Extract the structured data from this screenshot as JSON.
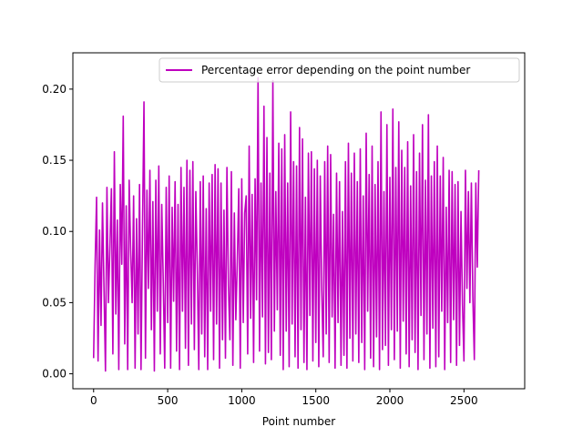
{
  "chart_data": {
    "type": "line",
    "title": "",
    "xlabel": "Point number",
    "ylabel": "",
    "xlim": [
      -140,
      2910
    ],
    "ylim": [
      -0.0105,
      0.2255
    ],
    "xticks": [
      0,
      500,
      1000,
      1500,
      2000,
      2500
    ],
    "yticks": [
      0.0,
      0.05,
      0.1,
      0.15,
      0.2
    ],
    "xtick_labels": [
      "0",
      "500",
      "1000",
      "1500",
      "2000",
      "2500"
    ],
    "ytick_labels": [
      "0.00",
      "0.05",
      "0.10",
      "0.15",
      "0.20"
    ],
    "grid": false,
    "legend_position": "upper right",
    "series": [
      {
        "name": "Percentage error depending on the point number",
        "color": "#bf00bf",
        "x_start": 0,
        "x_step": 10,
        "values": [
          0.011,
          0.076,
          0.124,
          0.009,
          0.101,
          0.034,
          0.12,
          0.061,
          0.002,
          0.131,
          0.05,
          0.089,
          0.13,
          0.014,
          0.156,
          0.042,
          0.108,
          0.003,
          0.133,
          0.077,
          0.181,
          0.021,
          0.118,
          0.003,
          0.136,
          0.087,
          0.05,
          0.125,
          0.004,
          0.109,
          0.028,
          0.133,
          0.003,
          0.101,
          0.191,
          0.011,
          0.129,
          0.06,
          0.143,
          0.031,
          0.121,
          0.002,
          0.136,
          0.044,
          0.146,
          0.014,
          0.119,
          0.066,
          0.004,
          0.131,
          0.036,
          0.139,
          0.004,
          0.117,
          0.051,
          0.135,
          0.016,
          0.119,
          0.003,
          0.145,
          0.044,
          0.131,
          0.018,
          0.15,
          0.006,
          0.143,
          0.035,
          0.149,
          0.017,
          0.128,
          0.074,
          0.003,
          0.135,
          0.028,
          0.139,
          0.012,
          0.116,
          0.003,
          0.134,
          0.044,
          0.14,
          0.01,
          0.147,
          0.035,
          0.144,
          0.004,
          0.134,
          0.024,
          0.115,
          0.011,
          0.145,
          0.062,
          0.024,
          0.142,
          0.006,
          0.113,
          0.038,
          0.079,
          0.13,
          0.004,
          0.137,
          0.036,
          0.113,
          0.125,
          0.014,
          0.16,
          0.039,
          0.126,
          0.008,
          0.137,
          0.052,
          0.208,
          0.016,
          0.134,
          0.04,
          0.188,
          0.007,
          0.166,
          0.015,
          0.141,
          0.01,
          0.206,
          0.03,
          0.128,
          0.045,
          0.162,
          0.013,
          0.158,
          0.003,
          0.168,
          0.03,
          0.134,
          0.005,
          0.184,
          0.035,
          0.149,
          0.012,
          0.146,
          0.004,
          0.173,
          0.031,
          0.165,
          0.008,
          0.124,
          0.003,
          0.155,
          0.041,
          0.156,
          0.009,
          0.144,
          0.022,
          0.15,
          0.005,
          0.139,
          0.059,
          0.012,
          0.149,
          0.028,
          0.16,
          0.008,
          0.154,
          0.04,
          0.112,
          0.004,
          0.141,
          0.036,
          0.135,
          0.006,
          0.114,
          0.013,
          0.149,
          0.004,
          0.162,
          0.025,
          0.141,
          0.009,
          0.155,
          0.028,
          0.135,
          0.008,
          0.158,
          0.022,
          0.125,
          0.003,
          0.169,
          0.044,
          0.14,
          0.011,
          0.16,
          0.005,
          0.133,
          0.026,
          0.149,
          0.003,
          0.184,
          0.017,
          0.128,
          0.02,
          0.175,
          0.006,
          0.138,
          0.031,
          0.186,
          0.01,
          0.145,
          0.03,
          0.177,
          0.004,
          0.157,
          0.037,
          0.145,
          0.014,
          0.163,
          0.005,
          0.132,
          0.024,
          0.168,
          0.015,
          0.142,
          0.003,
          0.155,
          0.041,
          0.175,
          0.01,
          0.136,
          0.028,
          0.182,
          0.004,
          0.139,
          0.032,
          0.149,
          0.005,
          0.16,
          0.012,
          0.139,
          0.044,
          0.152,
          0.003,
          0.117,
          0.036,
          0.143,
          0.008,
          0.142,
          0.038,
          0.133,
          0.006,
          0.135,
          0.02,
          0.114,
          0.049,
          0.009,
          0.143,
          0.06,
          0.128,
          0.05,
          0.134,
          0.054,
          0.01,
          0.134,
          0.075,
          0.143
        ]
      }
    ]
  }
}
